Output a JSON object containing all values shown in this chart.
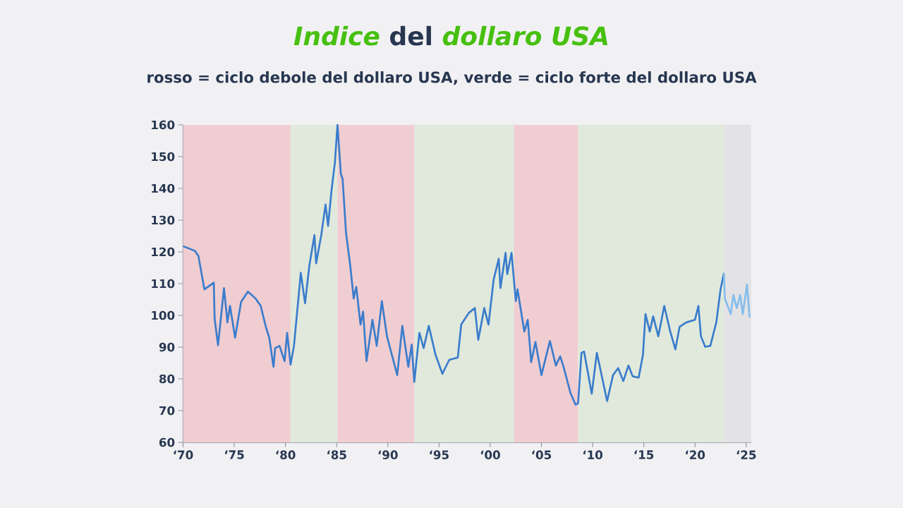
{
  "chart_data": {
    "type": "line",
    "title": "*Indice* del *dollaro USA*",
    "subtitle": "rosso = ciclo debole del dollaro USA, verde = ciclo forte del dollaro USA",
    "xlim": [
      "1970-01",
      "2025-07"
    ],
    "ylim": [
      60,
      160
    ],
    "xticks": [
      {
        "value": "1970",
        "label": "‘70"
      },
      {
        "value": "1975",
        "label": "‘75"
      },
      {
        "value": "1980",
        "label": "‘80"
      },
      {
        "value": "1985",
        "label": "‘85"
      },
      {
        "value": "1990",
        "label": "‘90"
      },
      {
        "value": "1995",
        "label": "‘95"
      },
      {
        "value": "2000",
        "label": "‘00"
      },
      {
        "value": "2005",
        "label": "‘05"
      },
      {
        "value": "2010",
        "label": "‘10"
      },
      {
        "value": "2015",
        "label": "‘15"
      },
      {
        "value": "2020",
        "label": "‘20"
      },
      {
        "value": "2025",
        "label": "‘25"
      }
    ],
    "yticks": [
      60,
      70,
      80,
      90,
      100,
      110,
      120,
      130,
      140,
      150,
      160
    ],
    "grid": false,
    "bands": [
      {
        "axis": "x",
        "from": "1970-01",
        "to": "1980-07",
        "color": "#f0cdd1"
      },
      {
        "axis": "x",
        "from": "1980-07",
        "to": "1985-02",
        "color": "#e1e9dc"
      },
      {
        "axis": "x",
        "from": "1985-02",
        "to": "1992-08",
        "color": "#f0cdd1"
      },
      {
        "axis": "x",
        "from": "1992-08",
        "to": "2002-05",
        "color": "#e1e9dc"
      },
      {
        "axis": "x",
        "from": "2002-05",
        "to": "2008-08",
        "color": "#f0cdd1"
      },
      {
        "axis": "x",
        "from": "2008-08",
        "to": "2022-11",
        "color": "#e1e9dc"
      },
      {
        "axis": "x",
        "from": "2022-11",
        "to": "2025-07",
        "color": "#e3e3e6"
      }
    ],
    "series": [
      {
        "color": "#3a7ccc",
        "x": [
          "1970-01",
          "1971-03",
          "1971-07",
          "1972-02",
          "1973-01",
          "1973-02",
          "1973-06",
          "1974-01",
          "1974-05",
          "1974-08",
          "1975-02",
          "1975-09",
          "1976-05",
          "1977-02",
          "1977-08",
          "1978-02",
          "1978-06",
          "1978-11",
          "1979-01",
          "1979-06",
          "1979-12",
          "1980-03",
          "1980-07",
          "1980-11",
          "1981-07",
          "1981-12",
          "1982-05",
          "1982-11",
          "1983-01",
          "1983-07",
          "1983-12",
          "1984-03",
          "1984-07",
          "1984-11",
          "1985-02",
          "1985-06",
          "1985-08",
          "1985-12",
          "1986-05",
          "1986-09",
          "1986-12",
          "1987-05",
          "1987-08",
          "1987-12",
          "1988-07",
          "1988-12",
          "1989-06",
          "1989-12",
          "1990-12",
          "1991-06",
          "1992-01",
          "1992-05",
          "1992-08",
          "1993-02",
          "1993-07",
          "1994-01",
          "1994-09",
          "1995-05",
          "1996-01",
          "1996-11",
          "1997-03",
          "1997-12",
          "1998-07",
          "1998-11",
          "1999-06",
          "1999-11",
          "2000-05",
          "2000-11",
          "2001-01",
          "2001-07",
          "2001-09",
          "2002-02",
          "2002-07",
          "2002-09",
          "2003-05",
          "2003-09",
          "2004-01",
          "2004-06",
          "2005-01",
          "2005-11",
          "2006-06",
          "2006-11",
          "2007-03",
          "2007-11",
          "2008-05",
          "2008-08",
          "2008-12",
          "2009-03",
          "2009-12",
          "2010-06",
          "2011-06",
          "2012-01",
          "2012-07",
          "2013-01",
          "2013-07",
          "2013-12",
          "2014-07",
          "2014-12",
          "2015-03",
          "2015-08",
          "2015-12",
          "2016-06",
          "2017-01",
          "2017-08",
          "2018-02",
          "2018-07",
          "2019-03",
          "2020-01",
          "2020-05",
          "2020-08",
          "2021-01",
          "2021-07",
          "2022-02",
          "2022-07",
          "2022-11"
        ],
        "values": [
          121.8,
          120.3,
          118.7,
          108.2,
          110.3,
          99,
          90.6,
          108.6,
          97.8,
          103,
          93,
          104.2,
          107.5,
          105.3,
          103,
          96.4,
          93,
          83.8,
          89.7,
          90.4,
          85.6,
          94.5,
          84.5,
          90.4,
          113.4,
          103.8,
          115.6,
          125.3,
          116.4,
          125.3,
          134.9,
          128.2,
          139.3,
          148.2,
          160,
          144.5,
          143,
          126,
          115.6,
          105.3,
          109,
          97.1,
          101.2,
          85.6,
          98.6,
          90.4,
          104.5,
          93.4,
          81.2,
          96.7,
          83.8,
          90.8,
          79,
          94.5,
          89.7,
          96.7,
          87.5,
          81.6,
          86,
          86.7,
          97.1,
          100.8,
          102.3,
          92.3,
          102.3,
          97.1,
          111.2,
          117.8,
          108.6,
          119.7,
          113,
          119.7,
          104.5,
          108.2,
          94.9,
          98.6,
          85.3,
          91.6,
          81.2,
          91.9,
          84.2,
          87.1,
          83.8,
          75.6,
          71.9,
          72.3,
          88.2,
          88.6,
          75.3,
          88.2,
          73,
          81.2,
          83.4,
          79.3,
          84.2,
          80.8,
          80.4,
          87.5,
          100.4,
          94.9,
          99.7,
          93.4,
          103,
          94.9,
          89.3,
          96.4,
          97.8,
          98.6,
          103,
          93.4,
          90.1,
          90.4,
          97.8,
          108.2,
          113.4
        ]
      },
      {
        "color": "#86bdec",
        "x": [
          "2022-11",
          "2022-12",
          "2023-07",
          "2023-10",
          "2024-02",
          "2024-06",
          "2024-09",
          "2025-02",
          "2025-05"
        ],
        "values": [
          113.4,
          105.3,
          100.4,
          106.4,
          102.3,
          106.4,
          100.4,
          109.7,
          99.3
        ]
      }
    ]
  }
}
